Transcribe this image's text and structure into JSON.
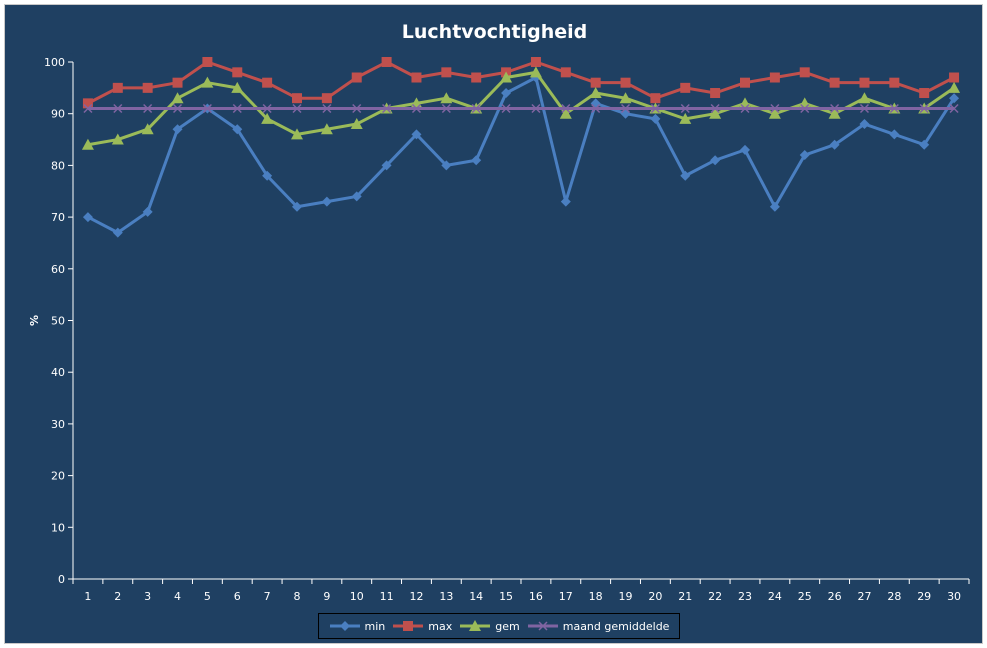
{
  "chart_data": {
    "type": "line",
    "title": "Luchtvochtigheid",
    "xlabel": "",
    "ylabel": "%",
    "ylim": [
      0,
      100
    ],
    "yticks": [
      0,
      10,
      20,
      30,
      40,
      50,
      60,
      70,
      80,
      90,
      100
    ],
    "categories": [
      "1",
      "2",
      "3",
      "4",
      "5",
      "6",
      "7",
      "8",
      "9",
      "10",
      "11",
      "12",
      "13",
      "14",
      "15",
      "16",
      "17",
      "18",
      "19",
      "20",
      "21",
      "22",
      "23",
      "24",
      "25",
      "26",
      "27",
      "28",
      "29",
      "30"
    ],
    "grid": false,
    "legend_position": "bottom",
    "series": [
      {
        "name": "min",
        "color": "#4a7fc1",
        "marker": "diamond",
        "values": [
          70,
          67,
          71,
          87,
          91,
          87,
          78,
          72,
          73,
          74,
          80,
          86,
          80,
          81,
          94,
          97,
          73,
          92,
          90,
          89,
          78,
          81,
          83,
          72,
          82,
          84,
          88,
          86,
          84,
          93
        ]
      },
      {
        "name": "max",
        "color": "#c0504d",
        "marker": "square",
        "values": [
          92,
          95,
          95,
          96,
          100,
          98,
          96,
          93,
          93,
          97,
          100,
          97,
          98,
          97,
          98,
          100,
          98,
          96,
          96,
          93,
          95,
          94,
          96,
          97,
          98,
          96,
          96,
          96,
          94,
          97
        ]
      },
      {
        "name": "gem",
        "color": "#9bbb59",
        "marker": "triangle",
        "values": [
          84,
          85,
          87,
          93,
          96,
          95,
          89,
          86,
          87,
          88,
          91,
          92,
          93,
          91,
          97,
          98,
          90,
          94,
          93,
          91,
          89,
          90,
          92,
          90,
          92,
          90,
          93,
          91,
          91,
          95
        ]
      },
      {
        "name": "maand gemiddelde",
        "color": "#8064a2",
        "marker": "x",
        "values": [
          91,
          91,
          91,
          91,
          91,
          91,
          91,
          91,
          91,
          91,
          91,
          91,
          91,
          91,
          91,
          91,
          91,
          91,
          91,
          91,
          91,
          91,
          91,
          91,
          91,
          91,
          91,
          91,
          91,
          91
        ]
      }
    ]
  }
}
